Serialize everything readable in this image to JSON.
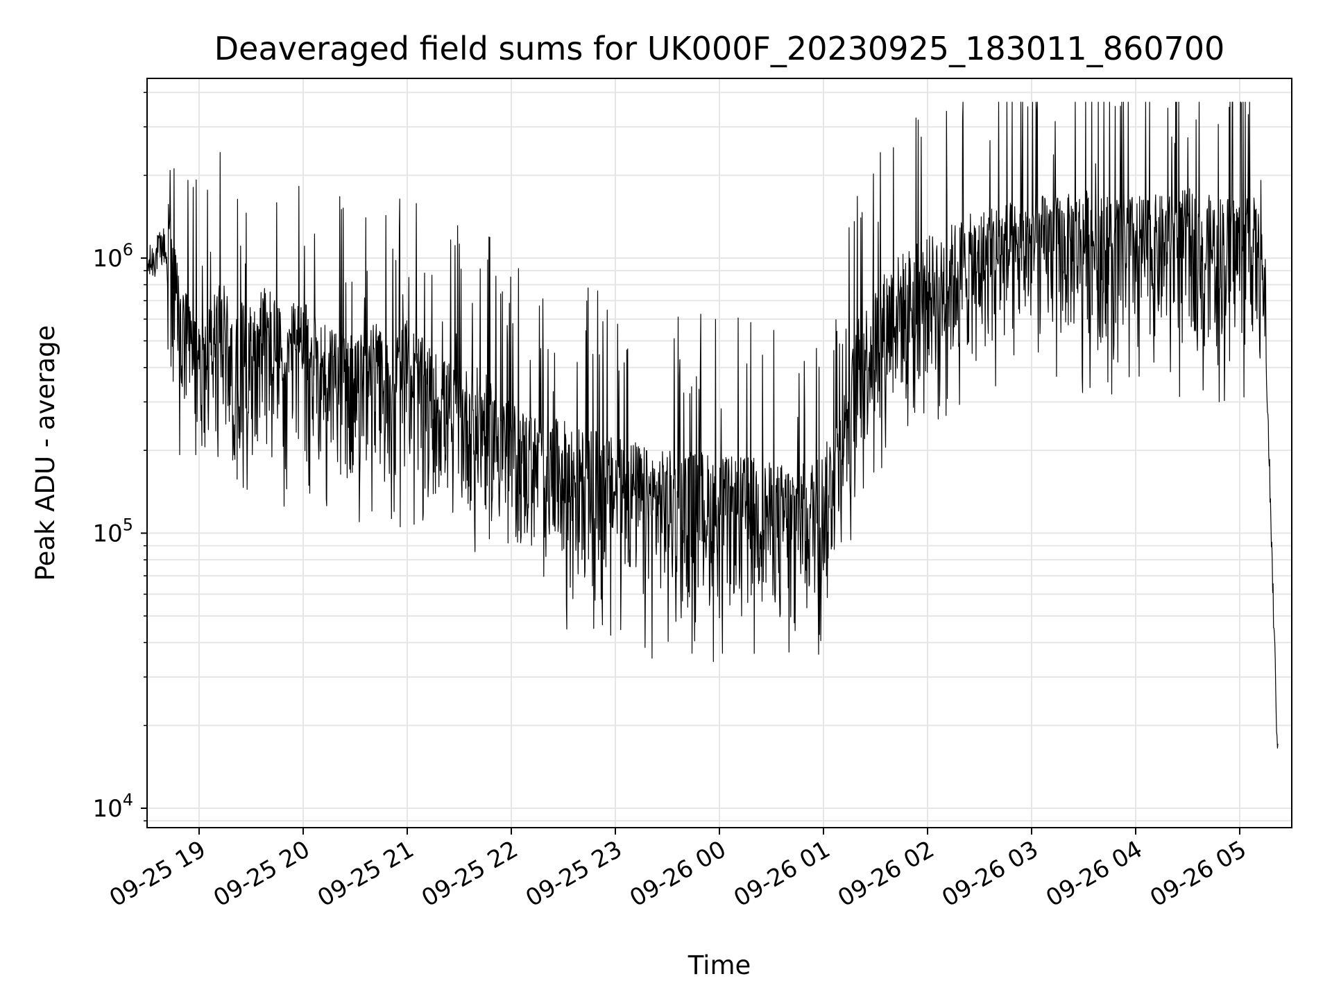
{
  "chart_data": {
    "type": "line",
    "title": "Deaveraged field sums for UK000F_20230925_183011_860700",
    "xlabel": "Time",
    "ylabel": "Peak ADU - average",
    "yscale": "log",
    "ylim": [
      8500,
      4500000
    ],
    "xlim": [
      "2023-09-25 18:30",
      "2023-09-26 05:30"
    ],
    "grid": true,
    "line_color": "#000000",
    "grid_color": "#e6e6e6",
    "y_ticks": [
      {
        "value": 10000,
        "base": "10",
        "exp": "4"
      },
      {
        "value": 100000,
        "base": "10",
        "exp": "5"
      },
      {
        "value": 1000000,
        "base": "10",
        "exp": "6"
      }
    ],
    "x_ticks": [
      {
        "time": "2023-09-25 19:00",
        "label": "09-25 19"
      },
      {
        "time": "2023-09-25 20:00",
        "label": "09-25 20"
      },
      {
        "time": "2023-09-25 21:00",
        "label": "09-25 21"
      },
      {
        "time": "2023-09-25 22:00",
        "label": "09-25 22"
      },
      {
        "time": "2023-09-25 23:00",
        "label": "09-25 23"
      },
      {
        "time": "2023-09-26 00:00",
        "label": "09-26 00"
      },
      {
        "time": "2023-09-26 01:00",
        "label": "09-26 01"
      },
      {
        "time": "2023-09-26 02:00",
        "label": "09-26 02"
      },
      {
        "time": "2023-09-26 03:00",
        "label": "09-26 03"
      },
      {
        "time": "2023-09-26 04:00",
        "label": "09-26 04"
      },
      {
        "time": "2023-09-26 05:00",
        "label": "09-26 05"
      }
    ],
    "series": [
      {
        "x": [
          "2023-09-25 18:30",
          "2023-09-25 18:35",
          "2023-09-25 18:40",
          "2023-09-25 18:45",
          "2023-09-25 18:50",
          "2023-09-25 18:55",
          "2023-09-25 19:00",
          "2023-09-25 19:05",
          "2023-09-25 19:10",
          "2023-09-25 19:15",
          "2023-09-25 19:20",
          "2023-09-25 19:25",
          "2023-09-25 19:30",
          "2023-09-25 19:35",
          "2023-09-25 19:40",
          "2023-09-25 19:45",
          "2023-09-25 19:50",
          "2023-09-25 19:55",
          "2023-09-25 20:00",
          "2023-09-25 20:10",
          "2023-09-25 20:20",
          "2023-09-25 20:30",
          "2023-09-25 20:40",
          "2023-09-25 20:50",
          "2023-09-25 21:00",
          "2023-09-25 21:10",
          "2023-09-25 21:20",
          "2023-09-25 21:30",
          "2023-09-25 21:40",
          "2023-09-25 21:50",
          "2023-09-25 22:00",
          "2023-09-25 22:10",
          "2023-09-25 22:20",
          "2023-09-25 22:30",
          "2023-09-25 22:40",
          "2023-09-25 22:50",
          "2023-09-25 23:00",
          "2023-09-25 23:10",
          "2023-09-25 23:20",
          "2023-09-25 23:30",
          "2023-09-25 23:40",
          "2023-09-25 23:50",
          "2023-09-26 00:00",
          "2023-09-26 00:10",
          "2023-09-26 00:20",
          "2023-09-26 00:30",
          "2023-09-26 00:40",
          "2023-09-26 00:50",
          "2023-09-26 01:00",
          "2023-09-26 01:10",
          "2023-09-26 01:20",
          "2023-09-26 01:30",
          "2023-09-26 01:40",
          "2023-09-26 01:50",
          "2023-09-26 02:00",
          "2023-09-26 02:10",
          "2023-09-26 02:20",
          "2023-09-26 02:30",
          "2023-09-26 02:40",
          "2023-09-26 02:50",
          "2023-09-26 03:00",
          "2023-09-26 03:10",
          "2023-09-26 03:20",
          "2023-09-26 03:30",
          "2023-09-26 03:40",
          "2023-09-26 03:50",
          "2023-09-26 04:00",
          "2023-09-26 04:10",
          "2023-09-26 04:20",
          "2023-09-26 04:30",
          "2023-09-26 04:40",
          "2023-09-26 04:50",
          "2023-09-26 05:00",
          "2023-09-26 05:05",
          "2023-09-26 05:10",
          "2023-09-26 05:15",
          "2023-09-26 05:20",
          "2023-09-26 05:22"
        ],
        "y": [
          900000,
          1000000,
          1100000,
          600000,
          400000,
          350000,
          300000,
          350000,
          400000,
          400000,
          300000,
          350000,
          350000,
          400000,
          400000,
          350000,
          300000,
          350000,
          350000,
          300000,
          300000,
          250000,
          300000,
          250000,
          300000,
          250000,
          220000,
          200000,
          200000,
          180000,
          150000,
          140000,
          130000,
          130000,
          120000,
          120000,
          110000,
          110000,
          100000,
          100000,
          100000,
          100000,
          95000,
          95000,
          95000,
          90000,
          90000,
          90000,
          100000,
          150000,
          300000,
          400000,
          500000,
          550000,
          600000,
          650000,
          700000,
          750000,
          800000,
          800000,
          850000,
          850000,
          850000,
          900000,
          850000,
          850000,
          850000,
          850000,
          850000,
          900000,
          850000,
          850000,
          850000,
          900000,
          800000,
          500000,
          40000,
          15000
        ]
      }
    ]
  }
}
